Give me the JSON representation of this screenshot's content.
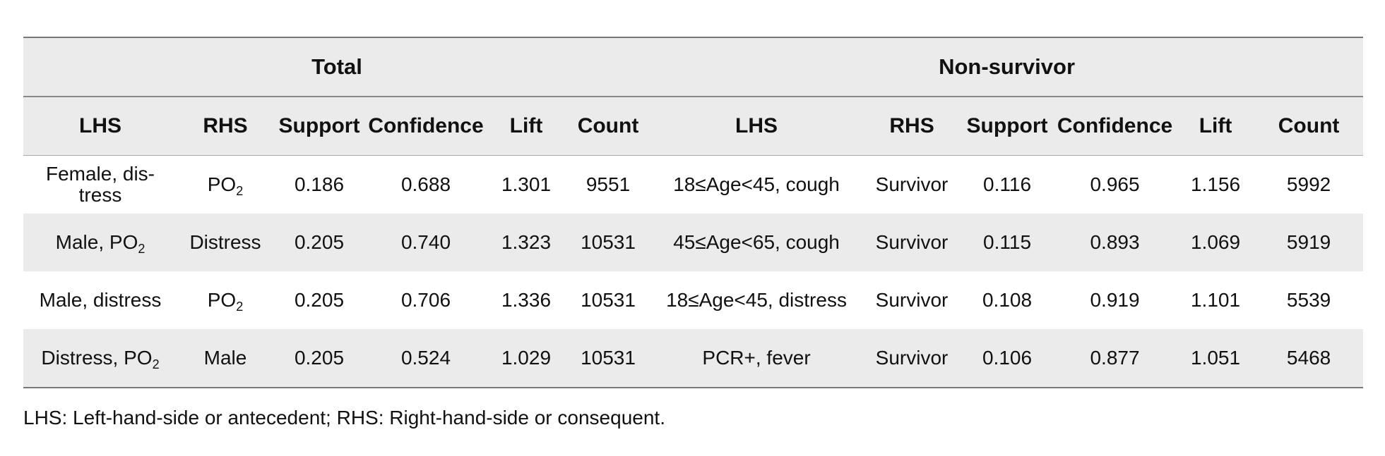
{
  "table": {
    "groups": [
      "Total",
      "Non-survivor"
    ],
    "columns": [
      "LHS",
      "RHS",
      "Support",
      "Confidence",
      "Lift",
      "Count",
      "LHS",
      "RHS",
      "Support",
      "Confidence",
      "Lift",
      "Count"
    ],
    "rows": [
      {
        "cells": [
          {
            "text": "Female, dis-tress",
            "sub": ""
          },
          {
            "text": "PO",
            "sub": "2"
          },
          {
            "text": "0.186",
            "sub": ""
          },
          {
            "text": "0.688",
            "sub": ""
          },
          {
            "text": "1.301",
            "sub": ""
          },
          {
            "text": "9551",
            "sub": ""
          },
          {
            "text": "18≤Age<45, cough",
            "sub": ""
          },
          {
            "text": "Survivor",
            "sub": ""
          },
          {
            "text": "0.116",
            "sub": ""
          },
          {
            "text": "0.965",
            "sub": ""
          },
          {
            "text": "1.156",
            "sub": ""
          },
          {
            "text": "5992",
            "sub": ""
          }
        ]
      },
      {
        "cells": [
          {
            "text": "Male, PO",
            "sub": "2"
          },
          {
            "text": "Distress",
            "sub": ""
          },
          {
            "text": "0.205",
            "sub": ""
          },
          {
            "text": "0.740",
            "sub": ""
          },
          {
            "text": "1.323",
            "sub": ""
          },
          {
            "text": "10531",
            "sub": ""
          },
          {
            "text": "45≤Age<65, cough",
            "sub": ""
          },
          {
            "text": "Survivor",
            "sub": ""
          },
          {
            "text": "0.115",
            "sub": ""
          },
          {
            "text": "0.893",
            "sub": ""
          },
          {
            "text": "1.069",
            "sub": ""
          },
          {
            "text": "5919",
            "sub": ""
          }
        ]
      },
      {
        "cells": [
          {
            "text": "Male, distress",
            "sub": ""
          },
          {
            "text": "PO",
            "sub": "2"
          },
          {
            "text": "0.205",
            "sub": ""
          },
          {
            "text": "0.706",
            "sub": ""
          },
          {
            "text": "1.336",
            "sub": ""
          },
          {
            "text": "10531",
            "sub": ""
          },
          {
            "text": "18≤Age<45, distress",
            "sub": ""
          },
          {
            "text": "Survivor",
            "sub": ""
          },
          {
            "text": "0.108",
            "sub": ""
          },
          {
            "text": "0.919",
            "sub": ""
          },
          {
            "text": "1.101",
            "sub": ""
          },
          {
            "text": "5539",
            "sub": ""
          }
        ]
      },
      {
        "cells": [
          {
            "text": "Distress, PO",
            "sub": "2"
          },
          {
            "text": "Male",
            "sub": ""
          },
          {
            "text": "0.205",
            "sub": ""
          },
          {
            "text": "0.524",
            "sub": ""
          },
          {
            "text": "1.029",
            "sub": ""
          },
          {
            "text": "10531",
            "sub": ""
          },
          {
            "text": "PCR+, fever",
            "sub": ""
          },
          {
            "text": "Survivor",
            "sub": ""
          },
          {
            "text": "0.106",
            "sub": ""
          },
          {
            "text": "0.877",
            "sub": ""
          },
          {
            "text": "1.051",
            "sub": ""
          },
          {
            "text": "5468",
            "sub": ""
          }
        ]
      }
    ]
  },
  "footnote": "LHS: Left-hand-side or antecedent; RHS: Right-hand-side or consequent."
}
